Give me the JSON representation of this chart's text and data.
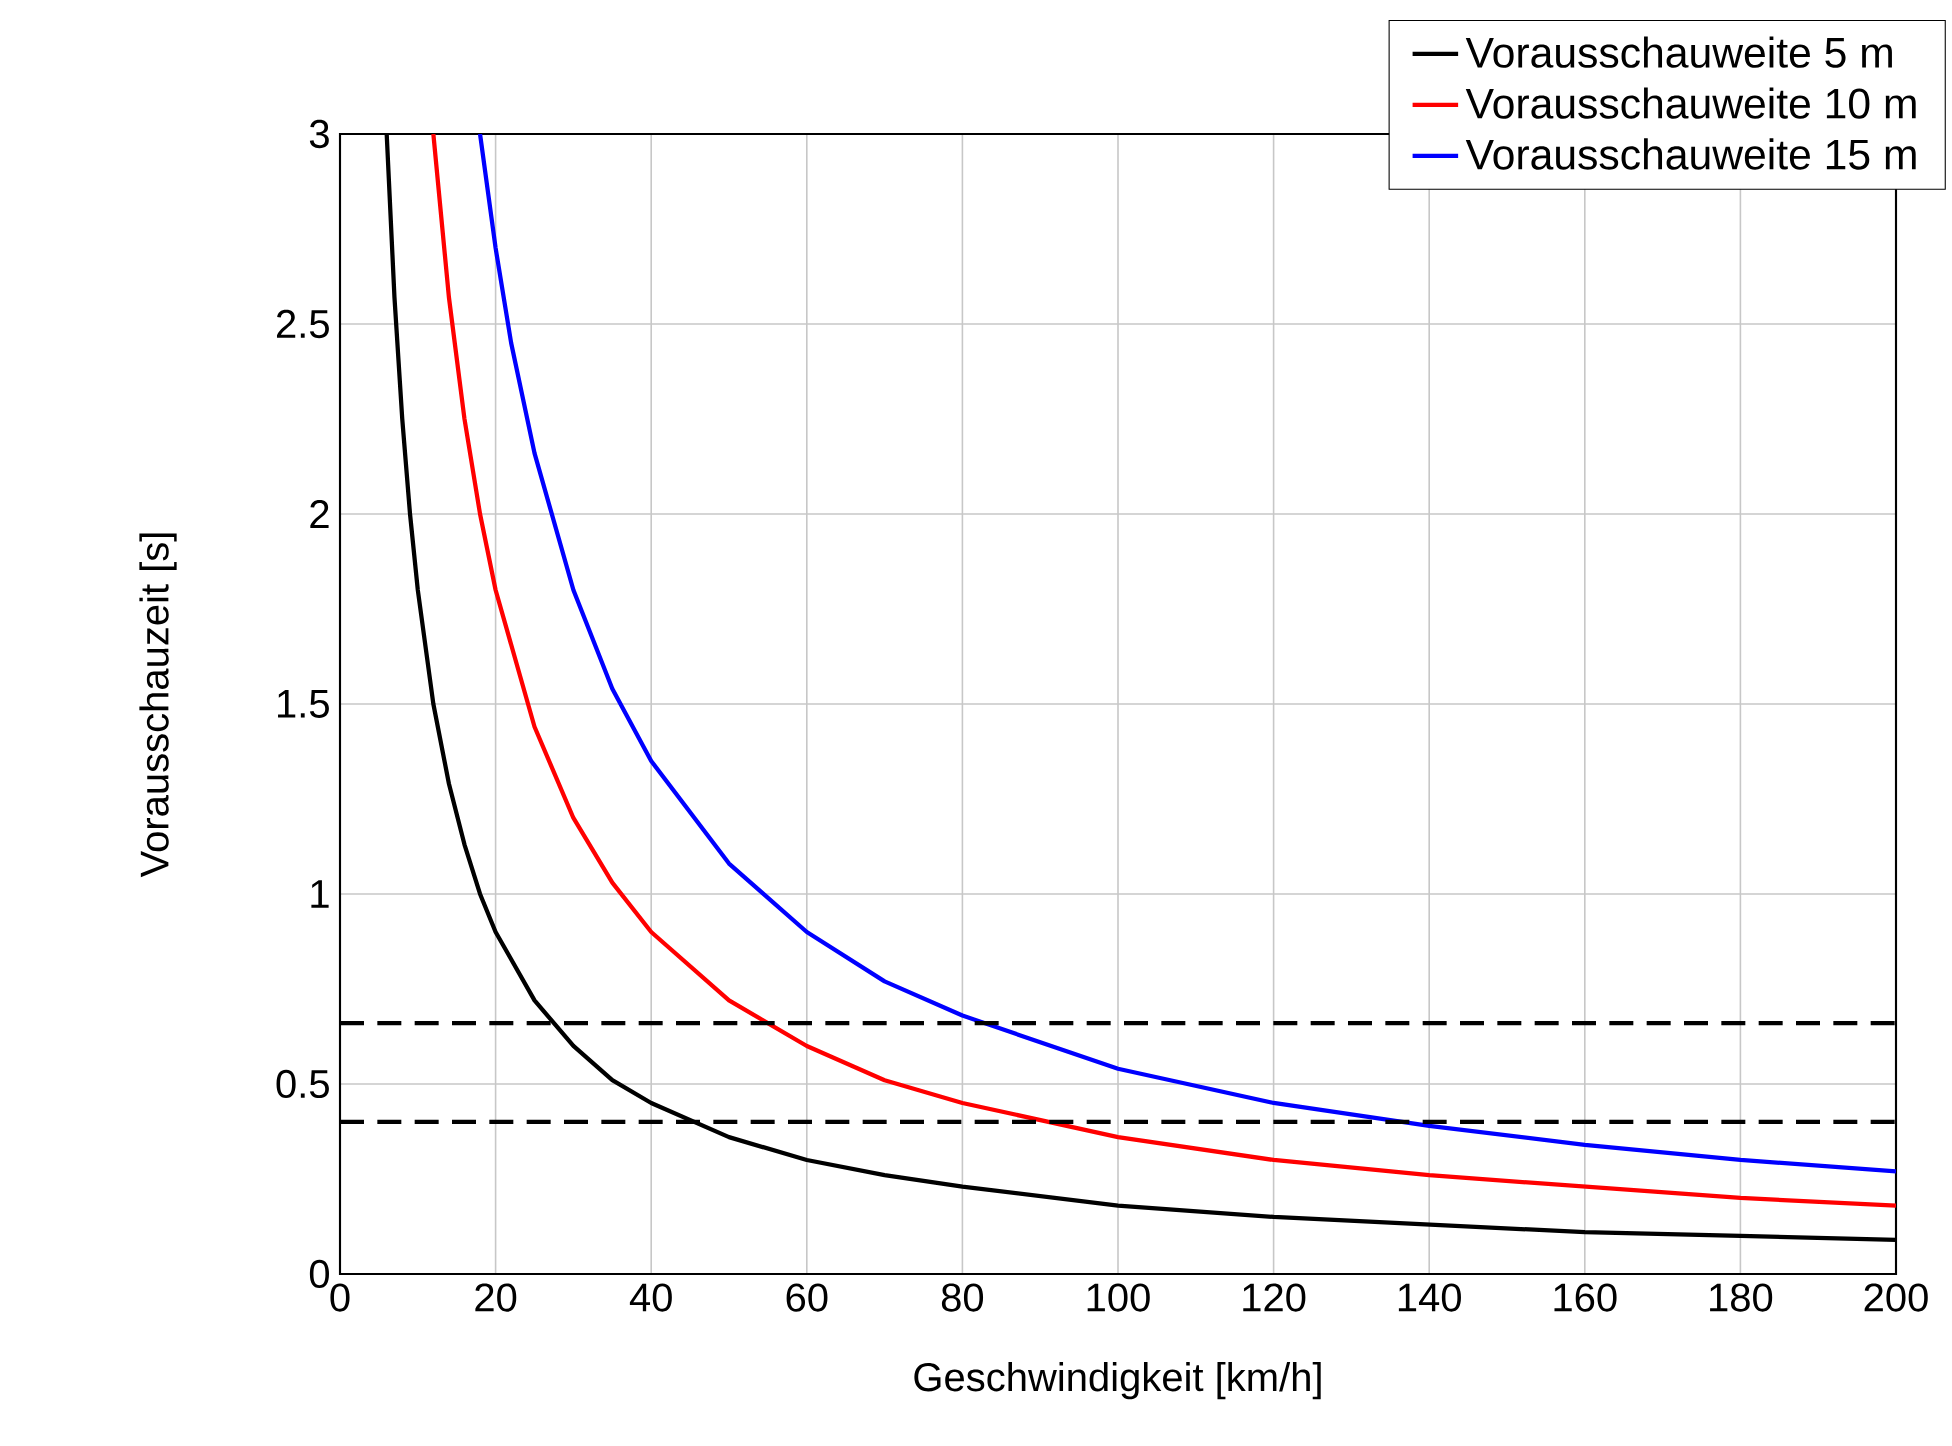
{
  "chart_data": {
    "type": "line",
    "xlabel": "Geschwindigkeit [km/h]",
    "ylabel": "Vorausschauzeit [s]",
    "xlim": [
      0,
      200
    ],
    "ylim": [
      0,
      3
    ],
    "xticks": [
      0,
      20,
      40,
      60,
      80,
      100,
      120,
      140,
      160,
      180,
      200
    ],
    "yticks": [
      0,
      0.5,
      1,
      1.5,
      2,
      2.5,
      3
    ],
    "grid": true,
    "legend": "top right",
    "line_style": "solid",
    "series": [
      {
        "name": "Vorausschauweite 5 m",
        "color": "#000000",
        "x": [
          6,
          7,
          8,
          9,
          10,
          12,
          14,
          16,
          18,
          20,
          25,
          30,
          35,
          40,
          50,
          60,
          70,
          80,
          100,
          120,
          140,
          160,
          180,
          200
        ],
        "values": [
          3,
          2.57,
          2.25,
          2,
          1.8,
          1.5,
          1.29,
          1.13,
          1,
          0.9,
          0.72,
          0.6,
          0.51,
          0.45,
          0.36,
          0.3,
          0.26,
          0.23,
          0.18,
          0.15,
          0.13,
          0.11,
          0.1,
          0.09
        ]
      },
      {
        "name": "Vorausschauweite 10 m",
        "color": "#ff0000",
        "x": [
          12,
          14,
          16,
          18,
          20,
          25,
          30,
          35,
          40,
          50,
          60,
          70,
          80,
          100,
          120,
          140,
          160,
          180,
          200
        ],
        "values": [
          3,
          2.57,
          2.25,
          2,
          1.8,
          1.44,
          1.2,
          1.03,
          0.9,
          0.72,
          0.6,
          0.51,
          0.45,
          0.36,
          0.3,
          0.26,
          0.23,
          0.2,
          0.18
        ]
      },
      {
        "name": "Vorausschauweite 15 m",
        "color": "#0000ff",
        "x": [
          18,
          20,
          22,
          25,
          30,
          35,
          40,
          50,
          60,
          70,
          80,
          100,
          120,
          140,
          160,
          180,
          200
        ],
        "values": [
          3,
          2.7,
          2.45,
          2.16,
          1.8,
          1.54,
          1.35,
          1.08,
          0.9,
          0.77,
          0.68,
          0.54,
          0.45,
          0.39,
          0.34,
          0.3,
          0.27
        ]
      }
    ],
    "ref_lines": [
      {
        "axis": "y",
        "value": 0.66,
        "color": "#000000",
        "line_style": "dashed"
      },
      {
        "axis": "y",
        "value": 0.4,
        "color": "#000000",
        "line_style": "dashed"
      }
    ]
  }
}
